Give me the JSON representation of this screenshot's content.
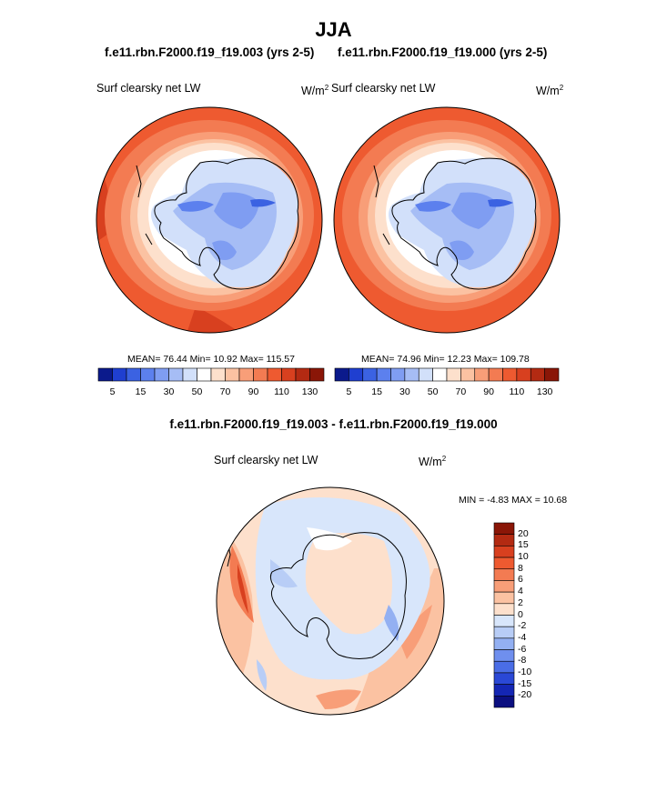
{
  "title": "JJA",
  "left_panel": {
    "run_title": "f.e11.rbn.F2000.f19_f19.003 (yrs 2-5)",
    "field_label": "Surf clearsky net LW",
    "units_base": "W/m",
    "units_exp": "2",
    "stats": "MEAN= 76.44  Min= 10.92  Max= 115.57"
  },
  "right_panel": {
    "run_title": "f.e11.rbn.F2000.f19_f19.000 (yrs 2-5)",
    "field_label": "Surf clearsky net LW",
    "units_base": "W/m",
    "units_exp": "2",
    "stats": "MEAN= 74.96  Min= 12.23  Max= 109.78"
  },
  "diff_panel": {
    "title": "f.e11.rbn.F2000.f19_f19.003 - f.e11.rbn.F2000.f19_f19.000",
    "field_label": "Surf clearsky net LW",
    "units_base": "W/m",
    "units_exp": "2",
    "stats": "MIN =  -4.83 MAX =  10.68"
  },
  "chart_data": [
    {
      "type": "heatmap",
      "projection": "polar stereographic (south pole)",
      "title": "f.e11.rbn.F2000.f19_f19.003 (yrs 2-5)",
      "variable": "Surf clearsky net LW",
      "units": "W/m2",
      "mean": 76.44,
      "min": 10.92,
      "max": 115.57,
      "colorbar_ticks": [
        5,
        15,
        30,
        50,
        70,
        90,
        110,
        130
      ],
      "colorbar_colors": [
        "#0b1a8c",
        "#1f3fd0",
        "#3b62e2",
        "#5c80ee",
        "#7f9df2",
        "#a6bdf5",
        "#d2e0fa",
        "#ffffff",
        "#fde0cc",
        "#fbc2a2",
        "#f89e78",
        "#f37b52",
        "#ee5a30",
        "#d8401f",
        "#b32a12",
        "#8a1607"
      ]
    },
    {
      "type": "heatmap",
      "projection": "polar stereographic (south pole)",
      "title": "f.e11.rbn.F2000.f19_f19.000 (yrs 2-5)",
      "variable": "Surf clearsky net LW",
      "units": "W/m2",
      "mean": 74.96,
      "min": 12.23,
      "max": 109.78,
      "colorbar_ticks": [
        5,
        15,
        30,
        50,
        70,
        90,
        110,
        130
      ],
      "colorbar_colors": [
        "#0b1a8c",
        "#1f3fd0",
        "#3b62e2",
        "#5c80ee",
        "#7f9df2",
        "#a6bdf5",
        "#d2e0fa",
        "#ffffff",
        "#fde0cc",
        "#fbc2a2",
        "#f89e78",
        "#f37b52",
        "#ee5a30",
        "#d8401f",
        "#b32a12",
        "#8a1607"
      ]
    },
    {
      "type": "heatmap",
      "projection": "polar stereographic (south pole)",
      "title": "f.e11.rbn.F2000.f19_f19.003 - f.e11.rbn.F2000.f19_f19.000",
      "variable": "Surf clearsky net LW",
      "units": "W/m2",
      "min": -4.83,
      "max": 10.68,
      "colorbar_ticks": [
        "20",
        "15",
        "10",
        "8",
        "6",
        "4",
        "2",
        "0",
        "-2",
        "-4",
        "-6",
        "-8",
        "-10",
        "-15",
        "-20"
      ],
      "colorbar_colors": [
        "#8a1607",
        "#b32a12",
        "#d8401f",
        "#ee5a30",
        "#f37b52",
        "#f89e78",
        "#fbc2a2",
        "#fde0cc",
        "#d8e6fb",
        "#b8cdf6",
        "#93b0f2",
        "#6f8fee",
        "#4a6de6",
        "#2a48d6",
        "#1426b4",
        "#0b0f80"
      ]
    }
  ]
}
